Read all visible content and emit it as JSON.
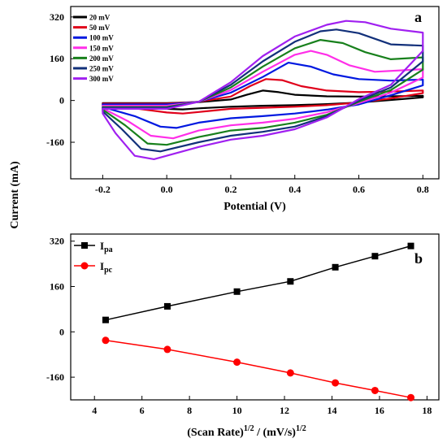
{
  "figure": {
    "shared_ylabel": "Current (mA)"
  },
  "chart_data": [
    {
      "panel_label": "a",
      "type": "line",
      "xlabel": "Potential (V)",
      "ylabel": "Current (mA)",
      "xlim": [
        -0.3,
        0.85
      ],
      "ylim": [
        -300,
        360
      ],
      "xticks": [
        "-0.2",
        "0.0",
        "0.2",
        "0.4",
        "0.6",
        "0.8"
      ],
      "xtick_values": [
        -0.2,
        0.0,
        0.2,
        0.4,
        0.6,
        0.8
      ],
      "yticks": [
        "320",
        "160",
        "0",
        "-160"
      ],
      "ytick_values": [
        320,
        160,
        0,
        -160
      ],
      "legend_position": "top-left",
      "series": [
        {
          "name": "20 mV",
          "color": "#000000",
          "forward": [
            [
              -0.2,
              -10
            ],
            [
              0,
              -10
            ],
            [
              0.1,
              -6
            ],
            [
              0.2,
              4
            ],
            [
              0.25,
              22
            ],
            [
              0.3,
              38
            ],
            [
              0.35,
              32
            ],
            [
              0.4,
              22
            ],
            [
              0.5,
              16
            ],
            [
              0.6,
              15
            ],
            [
              0.7,
              16
            ],
            [
              0.8,
              18
            ]
          ],
          "reverse": [
            [
              0.8,
              12
            ],
            [
              0.7,
              2
            ],
            [
              0.6,
              -8
            ],
            [
              0.5,
              -14
            ],
            [
              0.4,
              -18
            ],
            [
              0.3,
              -20
            ],
            [
              0.2,
              -24
            ],
            [
              0.1,
              -30
            ],
            [
              0.05,
              -34
            ],
            [
              0,
              -32
            ],
            [
              -0.1,
              -22
            ],
            [
              -0.2,
              -14
            ]
          ]
        },
        {
          "name": "50 mV",
          "color": "#e0001a",
          "forward": [
            [
              -0.2,
              -12
            ],
            [
              0,
              -12
            ],
            [
              0.1,
              -5
            ],
            [
              0.2,
              15
            ],
            [
              0.26,
              55
            ],
            [
              0.31,
              82
            ],
            [
              0.36,
              78
            ],
            [
              0.42,
              55
            ],
            [
              0.5,
              38
            ],
            [
              0.6,
              32
            ],
            [
              0.7,
              34
            ],
            [
              0.8,
              38
            ]
          ],
          "reverse": [
            [
              0.8,
              28
            ],
            [
              0.7,
              8
            ],
            [
              0.6,
              -8
            ],
            [
              0.5,
              -18
            ],
            [
              0.4,
              -24
            ],
            [
              0.3,
              -28
            ],
            [
              0.2,
              -32
            ],
            [
              0.1,
              -44
            ],
            [
              0.05,
              -50
            ],
            [
              0,
              -46
            ],
            [
              -0.1,
              -30
            ],
            [
              -0.2,
              -18
            ]
          ]
        },
        {
          "name": "100 mV",
          "color": "#0018e0",
          "forward": [
            [
              -0.2,
              -15
            ],
            [
              0,
              -15
            ],
            [
              0.1,
              -5
            ],
            [
              0.2,
              30
            ],
            [
              0.3,
              90
            ],
            [
              0.38,
              145
            ],
            [
              0.45,
              130
            ],
            [
              0.52,
              100
            ],
            [
              0.6,
              82
            ],
            [
              0.7,
              76
            ],
            [
              0.8,
              80
            ]
          ],
          "reverse": [
            [
              0.8,
              58
            ],
            [
              0.7,
              20
            ],
            [
              0.6,
              -15
            ],
            [
              0.5,
              -35
            ],
            [
              0.4,
              -50
            ],
            [
              0.3,
              -60
            ],
            [
              0.2,
              -68
            ],
            [
              0.1,
              -85
            ],
            [
              0.03,
              -105
            ],
            [
              -0.02,
              -100
            ],
            [
              -0.1,
              -60
            ],
            [
              -0.2,
              -25
            ]
          ]
        },
        {
          "name": "150 mV",
          "color": "#ff2ee8",
          "forward": [
            [
              -0.2,
              -20
            ],
            [
              0,
              -20
            ],
            [
              0.1,
              -5
            ],
            [
              0.2,
              40
            ],
            [
              0.3,
              110
            ],
            [
              0.4,
              175
            ],
            [
              0.45,
              190
            ],
            [
              0.5,
              175
            ],
            [
              0.57,
              135
            ],
            [
              0.65,
              110
            ],
            [
              0.8,
              120
            ]
          ],
          "reverse": [
            [
              0.8,
              88
            ],
            [
              0.7,
              30
            ],
            [
              0.6,
              -10
            ],
            [
              0.5,
              -45
            ],
            [
              0.4,
              -70
            ],
            [
              0.3,
              -85
            ],
            [
              0.2,
              -95
            ],
            [
              0.1,
              -115
            ],
            [
              0.02,
              -145
            ],
            [
              -0.05,
              -135
            ],
            [
              -0.12,
              -80
            ],
            [
              -0.2,
              -30
            ]
          ]
        },
        {
          "name": "200 mV",
          "color": "#18801c",
          "forward": [
            [
              -0.2,
              -25
            ],
            [
              0,
              -25
            ],
            [
              0.1,
              -5
            ],
            [
              0.2,
              50
            ],
            [
              0.3,
              130
            ],
            [
              0.4,
              200
            ],
            [
              0.48,
              232
            ],
            [
              0.55,
              220
            ],
            [
              0.62,
              185
            ],
            [
              0.7,
              158
            ],
            [
              0.8,
              165
            ]
          ],
          "reverse": [
            [
              0.8,
              118
            ],
            [
              0.7,
              40
            ],
            [
              0.6,
              -5
            ],
            [
              0.5,
              -55
            ],
            [
              0.4,
              -85
            ],
            [
              0.3,
              -105
            ],
            [
              0.2,
              -115
            ],
            [
              0.1,
              -140
            ],
            [
              0.0,
              -170
            ],
            [
              -0.06,
              -165
            ],
            [
              -0.13,
              -95
            ],
            [
              -0.2,
              -35
            ]
          ]
        },
        {
          "name": "250 mV",
          "color": "#12307a",
          "forward": [
            [
              -0.2,
              -28
            ],
            [
              0,
              -28
            ],
            [
              0.1,
              -5
            ],
            [
              0.2,
              60
            ],
            [
              0.3,
              150
            ],
            [
              0.4,
              225
            ],
            [
              0.48,
              265
            ],
            [
              0.53,
              272
            ],
            [
              0.6,
              258
            ],
            [
              0.7,
              215
            ],
            [
              0.8,
              210
            ]
          ],
          "reverse": [
            [
              0.8,
              150
            ],
            [
              0.7,
              50
            ],
            [
              0.6,
              0
            ],
            [
              0.5,
              -60
            ],
            [
              0.4,
              -100
            ],
            [
              0.3,
              -120
            ],
            [
              0.2,
              -135
            ],
            [
              0.1,
              -160
            ],
            [
              -0.02,
              -195
            ],
            [
              -0.08,
              -185
            ],
            [
              -0.14,
              -110
            ],
            [
              -0.2,
              -42
            ]
          ]
        },
        {
          "name": "300 mV",
          "color": "#a020f0",
          "forward": [
            [
              -0.2,
              -32
            ],
            [
              0,
              -32
            ],
            [
              0.1,
              -5
            ],
            [
              0.2,
              70
            ],
            [
              0.3,
              170
            ],
            [
              0.4,
              245
            ],
            [
              0.5,
              290
            ],
            [
              0.56,
              305
            ],
            [
              0.62,
              300
            ],
            [
              0.7,
              275
            ],
            [
              0.8,
              260
            ]
          ],
          "reverse": [
            [
              0.8,
              190
            ],
            [
              0.7,
              60
            ],
            [
              0.6,
              5
            ],
            [
              0.5,
              -65
            ],
            [
              0.4,
              -110
            ],
            [
              0.3,
              -135
            ],
            [
              0.2,
              -150
            ],
            [
              0.1,
              -178
            ],
            [
              -0.04,
              -225
            ],
            [
              -0.1,
              -212
            ],
            [
              -0.16,
              -125
            ],
            [
              -0.2,
              -50
            ]
          ]
        }
      ]
    },
    {
      "panel_label": "b",
      "type": "line",
      "xlabel_base": "(Scan Rate)",
      "xlabel_sup1": "1/2",
      "xlabel_mid": " / (mV/s)",
      "xlabel_sup2": "1/2",
      "xlim": [
        3,
        18.5
      ],
      "ylim": [
        -240,
        345
      ],
      "xticks": [
        "4",
        "6",
        "8",
        "10",
        "12",
        "14",
        "16",
        "18"
      ],
      "xtick_values": [
        4,
        6,
        8,
        10,
        12,
        14,
        16,
        18
      ],
      "yticks": [
        "320",
        "160",
        "0",
        "-160"
      ],
      "ytick_values": [
        320,
        160,
        0,
        -160
      ],
      "legend_position": "top-left",
      "x": [
        4.47,
        7.07,
        10.0,
        12.25,
        14.14,
        15.81,
        17.32
      ],
      "series": [
        {
          "name_base": "I",
          "name_sub": "pa",
          "color": "#000000",
          "marker": "square",
          "values": [
            42,
            90,
            142,
            178,
            228,
            267,
            303
          ]
        },
        {
          "name_base": "I",
          "name_sub": "pc",
          "color": "#ff0000",
          "marker": "circle",
          "values": [
            -30,
            -62,
            -107,
            -145,
            -180,
            -207,
            -232
          ]
        }
      ]
    }
  ]
}
